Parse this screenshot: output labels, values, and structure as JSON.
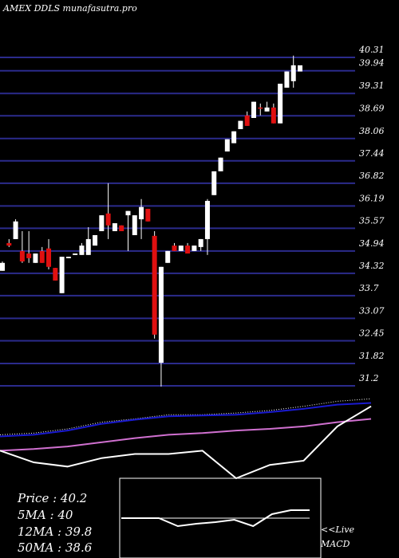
{
  "chart_data": [
    {
      "type": "candlestick",
      "title": "AMEX  DDLS munafasutra.pro",
      "ylim": [
        31.2,
        40.31
      ],
      "yticks": [
        40.31,
        39.94,
        39.31,
        38.69,
        38.06,
        37.44,
        36.82,
        36.19,
        35.57,
        34.94,
        34.32,
        33.7,
        33.07,
        32.45,
        31.82,
        31.2
      ],
      "grid": true,
      "grid_color": "#2b2b8c",
      "up_color": "#ffffff",
      "down_color": "#e01010",
      "open": [
        34.39,
        35.16,
        35.27,
        34.94,
        34.87,
        34.61,
        34.94,
        35.01,
        34.47,
        33.77,
        34.74,
        34.83,
        34.83,
        34.83,
        35.09,
        35.49,
        35.98,
        35.49,
        35.65,
        35.93,
        35.38,
        35.82,
        36.11,
        35.36,
        31.84,
        34.61,
        35.09,
        34.94,
        35.09,
        34.94,
        35.05,
        35.27,
        36.49,
        37.15,
        37.7,
        37.93,
        38.32,
        38.7,
        38.63,
        38.92,
        38.81,
        38.92,
        38.48,
        39.47,
        39.65,
        39.92
      ],
      "high": [
        34.65,
        35.27,
        35.82,
        35.49,
        35.49,
        34.87,
        35.05,
        35.27,
        34.47,
        34.78,
        34.78,
        34.87,
        35.16,
        35.6,
        35.38,
        35.93,
        36.82,
        35.71,
        35.65,
        36.05,
        35.93,
        36.38,
        36.11,
        35.49,
        34.5,
        34.94,
        35.16,
        35.09,
        35.16,
        35.09,
        35.27,
        36.38,
        37.15,
        37.53,
        38.04,
        38.26,
        38.55,
        38.81,
        39.08,
        39.03,
        39.08,
        39.03,
        39.58,
        39.92,
        40.36,
        40.09
      ],
      "low": [
        34.39,
        35.05,
        35.27,
        34.61,
        34.61,
        34.61,
        34.61,
        34.43,
        34.12,
        33.77,
        34.74,
        34.83,
        34.83,
        34.83,
        35.09,
        35.49,
        35.27,
        35.49,
        35.49,
        34.94,
        35.38,
        35.27,
        35.76,
        32.51,
        31.18,
        34.61,
        34.94,
        34.94,
        34.87,
        34.94,
        34.94,
        34.83,
        36.49,
        37.15,
        37.7,
        37.93,
        38.32,
        38.41,
        38.63,
        38.7,
        38.81,
        38.48,
        38.48,
        39.47,
        39.47,
        39.92
      ],
      "close": [
        34.61,
        35.09,
        35.76,
        34.65,
        34.74,
        34.87,
        34.61,
        34.5,
        34.12,
        34.78,
        34.78,
        34.87,
        35.09,
        35.27,
        35.38,
        35.93,
        35.65,
        35.71,
        35.49,
        36.05,
        35.93,
        36.16,
        35.76,
        32.62,
        34.5,
        34.94,
        34.94,
        35.09,
        34.87,
        35.09,
        35.27,
        36.33,
        37.15,
        37.53,
        38.04,
        38.26,
        38.55,
        38.41,
        39.08,
        38.9,
        38.92,
        38.48,
        39.58,
        39.92,
        40.09,
        40.09
      ]
    },
    {
      "type": "line",
      "x": [
        0,
        1,
        2,
        3,
        4,
        5,
        6,
        7,
        8,
        9,
        10,
        11
      ],
      "xlim": [
        0,
        11
      ],
      "ylim": [
        0,
        100
      ],
      "series": [
        {
          "color": "#ffffff",
          "style": "dotted",
          "values": [
            52,
            54,
            59,
            67,
            71,
            76,
            76,
            78,
            81,
            86,
            92,
            95
          ]
        },
        {
          "color": "#1a1ad0",
          "values": [
            50,
            52,
            57,
            65,
            70,
            74,
            75,
            76,
            79,
            83,
            88,
            90
          ]
        },
        {
          "color": "#d070d0",
          "values": [
            33,
            35,
            38,
            43,
            48,
            52,
            54,
            57,
            59,
            62,
            67,
            71
          ]
        },
        {
          "color": "#ffffff",
          "values": [
            33,
            19,
            14,
            24,
            29,
            29,
            33,
            0,
            16,
            21,
            62,
            86
          ]
        }
      ]
    },
    {
      "type": "line",
      "x": [
        0,
        1,
        2,
        3,
        4,
        5,
        6,
        7,
        8,
        9,
        10
      ],
      "xlim": [
        0,
        10
      ],
      "ylim": [
        -50,
        50
      ],
      "series": [
        {
          "color": "#ffffff",
          "values": [
            0,
            0,
            0,
            -10,
            -7,
            -5,
            -2,
            -10,
            5,
            10,
            10
          ]
        }
      ],
      "zero_line": 0,
      "label_1": "<<Live",
      "label_2": "MACD"
    }
  ],
  "info": [
    "Price   : 40.2",
    "5MA : 40",
    "12MA : 39.8",
    "50MA : 38.6"
  ]
}
